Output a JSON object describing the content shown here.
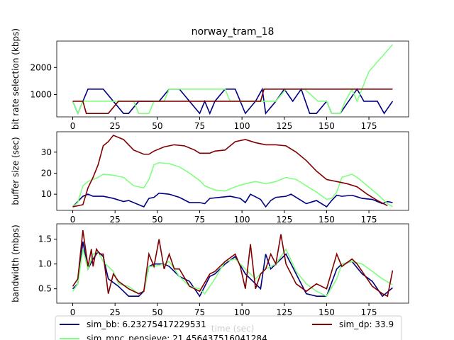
{
  "chart_data": [
    {
      "type": "line",
      "title": "norway_tram_18",
      "ylabel": "bit rate selection (kbps)",
      "xlim": [
        -9.45,
        198.45
      ],
      "xticks": [
        0,
        25,
        50,
        75,
        100,
        125,
        150,
        175
      ],
      "ylim": [
        172.5,
        2977.5
      ],
      "yticks": [
        1000,
        2000
      ],
      "series": [
        {
          "color": "#000080",
          "x": [
            0,
            3,
            6,
            9,
            18,
            24,
            30,
            33,
            39,
            45,
            51,
            57,
            63,
            69,
            75,
            78,
            81,
            84,
            90,
            96,
            102,
            108,
            112,
            114,
            120,
            125,
            130,
            135,
            140,
            144,
            150,
            153,
            158,
            163,
            168,
            172,
            180,
            184,
            189
          ],
          "values": [
            750,
            300,
            750,
            1200,
            1200,
            750,
            300,
            300,
            750,
            750,
            750,
            1200,
            1200,
            750,
            300,
            750,
            300,
            750,
            1200,
            1200,
            300,
            750,
            1200,
            300,
            750,
            1200,
            750,
            1200,
            300,
            300,
            750,
            300,
            300,
            750,
            1200,
            750,
            750,
            300,
            750
          ]
        },
        {
          "color": "#80ff80",
          "x": [
            0,
            3,
            6,
            36,
            39,
            45,
            48,
            54,
            57,
            90,
            93,
            120,
            126,
            137,
            145,
            150,
            153,
            158,
            161,
            165,
            168,
            175,
            189
          ],
          "values": [
            750,
            300,
            750,
            750,
            300,
            300,
            750,
            750,
            1200,
            1200,
            750,
            750,
            1200,
            1200,
            750,
            750,
            300,
            300,
            750,
            1200,
            750,
            1850,
            2850
          ]
        },
        {
          "color": "#800000",
          "x": [
            0,
            6,
            8,
            21,
            27,
            111,
            113,
            189
          ],
          "values": [
            750,
            750,
            300,
            300,
            750,
            750,
            1200,
            1200
          ]
        }
      ]
    },
    {
      "type": "line",
      "ylabel": "buffer size (sec)",
      "xlim": [
        -9.45,
        198.45
      ],
      "xticks": [
        0,
        25,
        50,
        75,
        100,
        125,
        150,
        175
      ],
      "ylim": [
        2.3,
        39.7
      ],
      "yticks": [
        10,
        20,
        30
      ],
      "series": [
        {
          "color": "#000080",
          "x": [
            0,
            6,
            9,
            12,
            18,
            24,
            30,
            33,
            39,
            42,
            45,
            48,
            51,
            57,
            63,
            69,
            75,
            78,
            81,
            87,
            93,
            99,
            102,
            105,
            111,
            114,
            117,
            120,
            126,
            129,
            138,
            144,
            150,
            153,
            156,
            159,
            165,
            171,
            177,
            183,
            186,
            189
          ],
          "values": [
            4,
            9,
            10,
            9,
            9,
            8,
            6.5,
            7,
            5,
            4,
            8,
            8.5,
            10.5,
            10,
            8.5,
            6,
            6,
            5.5,
            8,
            8.5,
            9,
            8,
            6,
            10,
            7.5,
            4,
            7,
            8.5,
            9,
            10,
            5.5,
            7,
            4,
            7,
            9.5,
            9,
            9.5,
            8,
            7.5,
            5.5,
            6.5,
            6
          ]
        },
        {
          "color": "#80ff80",
          "x": [
            0,
            3,
            6,
            9,
            12,
            15,
            18,
            24,
            30,
            36,
            42,
            45,
            48,
            51,
            57,
            63,
            69,
            75,
            78,
            84,
            90,
            96,
            102,
            108,
            114,
            120,
            126,
            132,
            138,
            144,
            150,
            153,
            156,
            159,
            165,
            168,
            174,
            180,
            186,
            189
          ],
          "values": [
            4,
            6,
            14,
            16,
            17,
            18,
            19.5,
            19,
            18,
            14,
            13,
            17,
            24,
            25,
            24.5,
            23,
            20,
            16.5,
            14,
            12,
            11.5,
            13.5,
            15,
            16,
            15,
            16,
            18,
            17,
            14,
            11,
            7.5,
            8,
            11,
            18,
            19.5,
            18,
            14,
            10,
            5.5,
            4
          ]
        },
        {
          "color": "#800000",
          "x": [
            0,
            6,
            9,
            12,
            15,
            18,
            21,
            24,
            30,
            36,
            42,
            45,
            48,
            54,
            60,
            66,
            72,
            75,
            81,
            84,
            90,
            96,
            102,
            108,
            114,
            120,
            126,
            132,
            138,
            144,
            150,
            156,
            162,
            168,
            174,
            180,
            186
          ],
          "values": [
            4,
            5,
            13,
            18,
            24,
            33,
            35,
            38,
            36,
            31,
            29,
            29,
            30.5,
            32.5,
            33.5,
            33,
            31,
            29.5,
            29.5,
            30.5,
            31,
            35,
            36,
            34.5,
            33.5,
            33.5,
            33,
            30,
            26,
            21,
            17,
            16,
            15,
            13.5,
            10,
            7,
            4.5
          ]
        }
      ]
    },
    {
      "type": "line",
      "ylabel": "bandwidth (mbps)",
      "xlabel": "time (sec)",
      "xlim": [
        -9.45,
        198.45
      ],
      "xticks": [
        0,
        25,
        50,
        75,
        100,
        125,
        150,
        175
      ],
      "ylim": [
        0.21,
        1.81
      ],
      "yticks": [
        0.5,
        {
          "value": 1,
          "label": "1.0"
        },
        1.5
      ],
      "series": [
        {
          "name": "sim_bb: 6.23275417229531",
          "color": "#000080",
          "x": [
            0,
            3,
            6,
            9,
            12,
            15,
            18,
            21,
            27,
            33,
            39,
            42,
            45,
            48,
            54,
            57,
            63,
            69,
            75,
            81,
            84,
            90,
            96,
            102,
            108,
            111,
            114,
            117,
            120,
            126,
            132,
            138,
            144,
            150,
            156,
            159,
            165,
            171,
            177,
            183,
            189
          ],
          "values": [
            0.5,
            0.6,
            1.45,
            0.9,
            1.1,
            1.25,
            1.15,
            0.7,
            0.55,
            0.35,
            0.35,
            0.45,
            0.95,
            1.0,
            1.0,
            0.95,
            0.75,
            0.65,
            0.35,
            0.75,
            0.8,
            1.0,
            1.15,
            0.8,
            0.6,
            0.5,
            1.2,
            0.9,
            1.0,
            1.2,
            0.8,
            0.4,
            0.35,
            0.35,
            0.9,
            1.0,
            1.05,
            0.8,
            0.65,
            0.35,
            0.52
          ]
        },
        {
          "name": "sim_mpc_pensieve: 21.456437516041284",
          "color": "#80ff80",
          "x": [
            0,
            3,
            6,
            9,
            12,
            15,
            18,
            24,
            27,
            33,
            39,
            42,
            45,
            48,
            54,
            57,
            63,
            69,
            75,
            78,
            84,
            90,
            96,
            102,
            108,
            114,
            120,
            126,
            132,
            138,
            144,
            150,
            156,
            159,
            165,
            171,
            177,
            183,
            189
          ],
          "values": [
            0.45,
            0.6,
            1.3,
            0.9,
            1.2,
            1.25,
            1.05,
            0.85,
            0.6,
            0.55,
            0.4,
            0.45,
            0.95,
            0.95,
            1.0,
            1.05,
            0.75,
            0.55,
            0.5,
            0.4,
            0.7,
            1.05,
            1.1,
            0.9,
            0.7,
            0.9,
            1.0,
            1.3,
            0.85,
            0.6,
            0.45,
            0.35,
            0.7,
            1.0,
            1.05,
            1.0,
            0.85,
            0.7,
            0.58
          ]
        },
        {
          "name": "sim_dp: 33.9",
          "color": "#800000",
          "x": [
            0,
            3,
            6,
            9,
            11,
            12,
            14,
            16,
            18,
            21,
            24,
            27,
            33,
            39,
            42,
            45,
            48,
            51,
            54,
            57,
            60,
            63,
            69,
            75,
            81,
            84,
            90,
            96,
            99,
            102,
            105,
            108,
            111,
            114,
            117,
            120,
            123,
            126,
            132,
            138,
            144,
            150,
            156,
            159,
            165,
            168,
            171,
            177,
            183,
            186,
            189
          ],
          "values": [
            0.55,
            0.7,
            1.68,
            0.95,
            1.3,
            0.95,
            1.3,
            1.2,
            1.2,
            0.4,
            0.8,
            0.65,
            0.5,
            0.4,
            0.45,
            1.2,
            0.95,
            1.5,
            0.9,
            1.2,
            0.9,
            0.9,
            0.55,
            0.45,
            0.8,
            0.85,
            1.05,
            1.2,
            0.95,
            0.5,
            1.4,
            0.5,
            0.8,
            0.9,
            1.2,
            1.0,
            1.6,
            1.0,
            0.6,
            0.45,
            0.6,
            0.5,
            1.2,
            0.95,
            1.1,
            1.0,
            0.85,
            0.55,
            0.4,
            0.35,
            0.87
          ]
        }
      ]
    }
  ]
}
